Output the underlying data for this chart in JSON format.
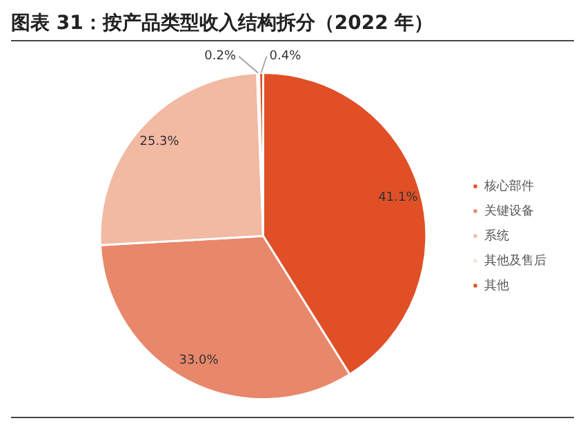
{
  "chart_data": {
    "type": "pie",
    "title": "图表 31：按产品类型收入结构拆分（2022 年）",
    "categories": [
      "核心部件",
      "关键设备",
      "系统",
      "其他及售后",
      "其他"
    ],
    "values": [
      41.1,
      33.0,
      25.3,
      0.2,
      0.4
    ],
    "value_labels": [
      "41.1%",
      "33.0%",
      "25.3%",
      "0.2%",
      "0.4%"
    ],
    "colors": [
      "#e04f26",
      "#e8876a",
      "#f2b9a3",
      "#f9e0d6",
      "#e04f26"
    ],
    "legend": "right"
  }
}
